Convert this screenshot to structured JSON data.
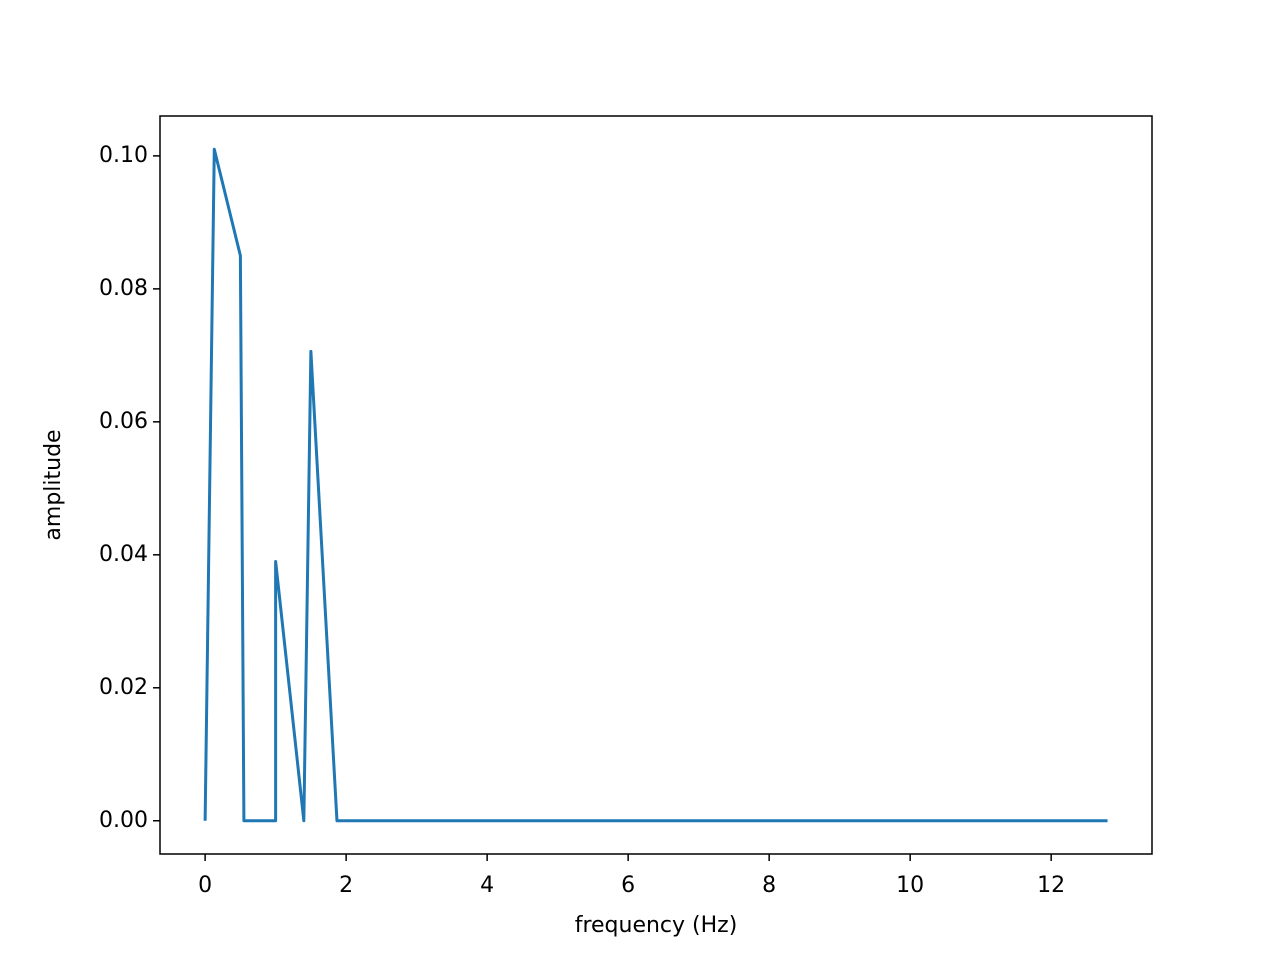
{
  "chart_data": {
    "type": "line",
    "x": [
      0,
      0.13,
      0.5,
      0.55,
      1.0,
      1.0,
      1.4,
      1.5,
      1.87,
      12.8
    ],
    "values": [
      0,
      0.101,
      0.085,
      0,
      0,
      0.039,
      0,
      0.0706,
      0,
      0
    ],
    "color": "#1f77b4",
    "xlabel": "frequency (Hz)",
    "ylabel": "amplitude",
    "xlim": [
      -0.64,
      13.43
    ],
    "ylim": [
      -0.005,
      0.106
    ],
    "xticks": [
      0,
      2,
      4,
      6,
      8,
      10,
      12
    ],
    "yticks": [
      {
        "value": 0,
        "label": "0.00"
      },
      {
        "value": 0.02,
        "label": "0.02"
      },
      {
        "value": 0.04,
        "label": "0.04"
      },
      {
        "value": 0.06,
        "label": "0.06"
      },
      {
        "value": 0.08,
        "label": "0.08"
      },
      {
        "value": 0.1,
        "label": "0.10"
      }
    ],
    "grid": false
  }
}
